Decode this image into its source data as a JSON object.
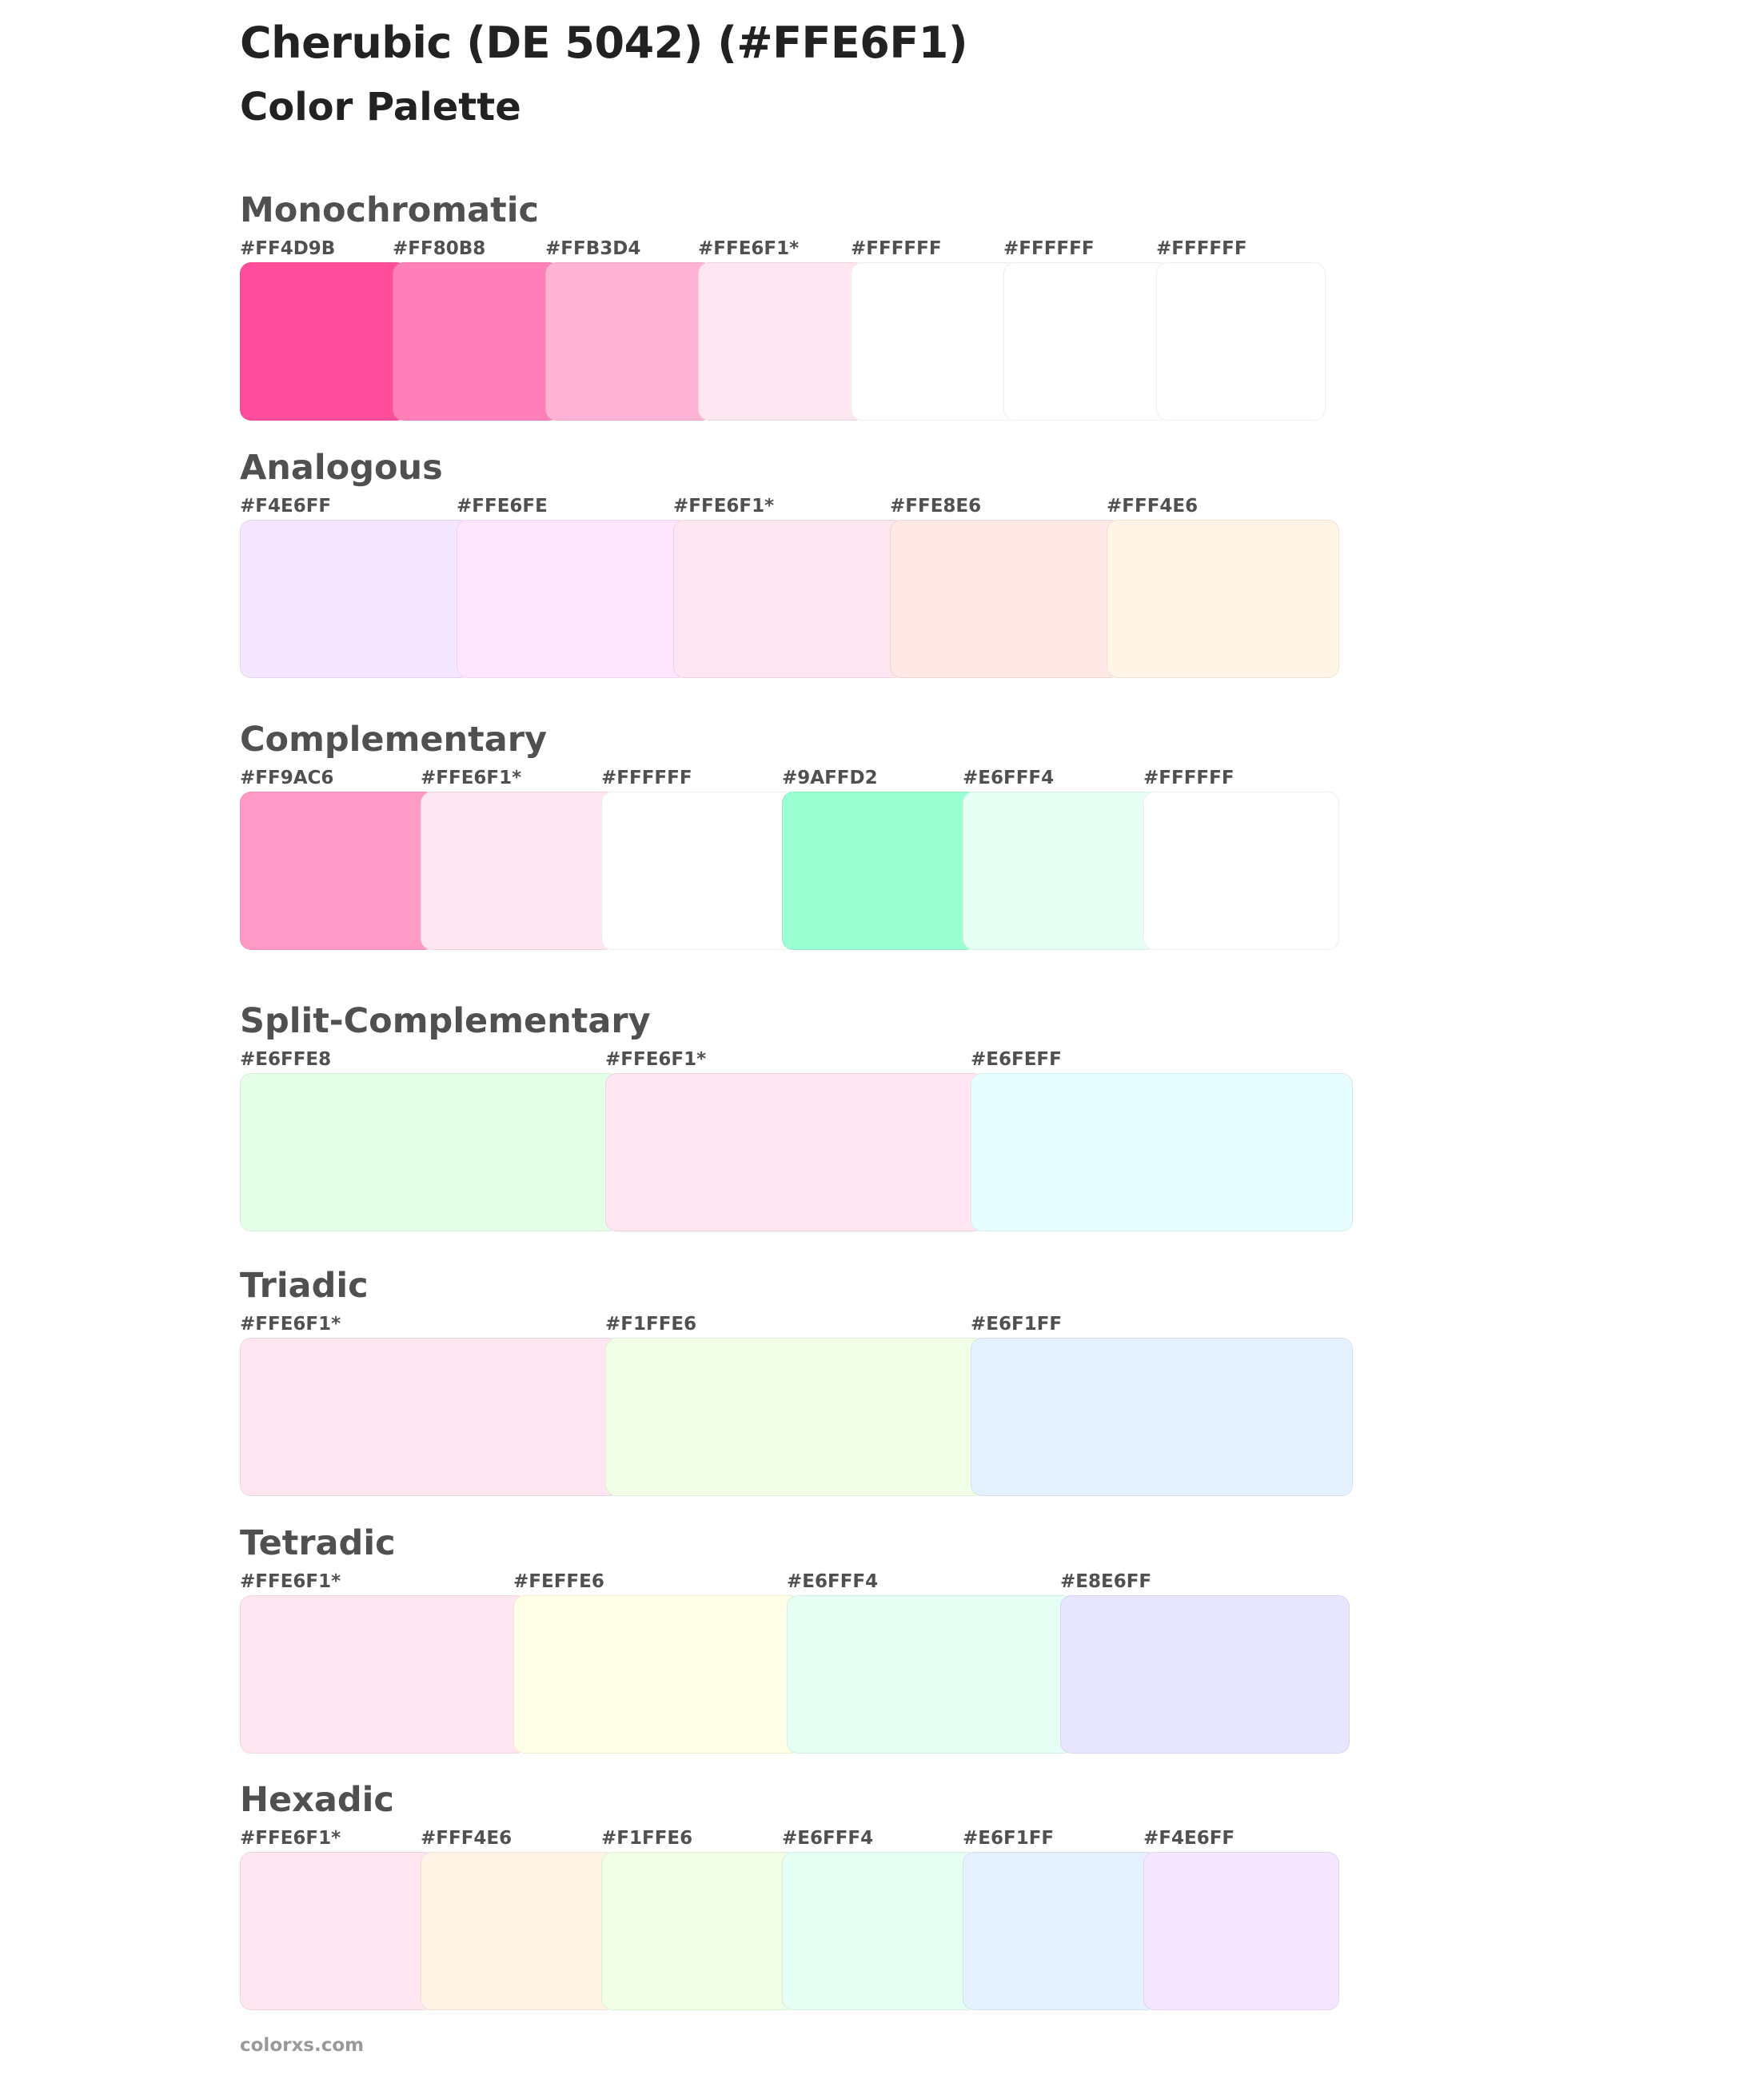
{
  "header": {
    "title": "Cherubic (DE 5042) (#FFE6F1)",
    "subtitle": "Color Palette"
  },
  "sections": [
    {
      "name": "Monochromatic",
      "swatches": [
        {
          "label": "#FF4D9B",
          "color": "#FF4D9B"
        },
        {
          "label": "#FF80B8",
          "color": "#FF80B8"
        },
        {
          "label": "#FFB3D4",
          "color": "#FFB3D4"
        },
        {
          "label": "#FFE6F1*",
          "color": "#FFE6F1"
        },
        {
          "label": "#FFFFFF",
          "color": "#FFFFFF"
        },
        {
          "label": "#FFFFFF",
          "color": "#FFFFFF"
        },
        {
          "label": "#FFFFFF",
          "color": "#FFFFFF"
        }
      ]
    },
    {
      "name": "Analogous",
      "swatches": [
        {
          "label": "#F4E6FF",
          "color": "#F4E6FF"
        },
        {
          "label": "#FFE6FE",
          "color": "#FFE6FE"
        },
        {
          "label": "#FFE6F1*",
          "color": "#FFE6F1"
        },
        {
          "label": "#FFE8E6",
          "color": "#FFE8E6"
        },
        {
          "label": "#FFF4E6",
          "color": "#FFF4E6"
        }
      ]
    },
    {
      "name": "Complementary",
      "swatches": [
        {
          "label": "#FF9AC6",
          "color": "#FF9AC6"
        },
        {
          "label": "#FFE6F1*",
          "color": "#FFE6F1"
        },
        {
          "label": "#FFFFFF",
          "color": "#FFFFFF"
        },
        {
          "label": "#9AFFD2",
          "color": "#9AFFD2"
        },
        {
          "label": "#E6FFF4",
          "color": "#E6FFF4"
        },
        {
          "label": "#FFFFFF",
          "color": "#FFFFFF"
        }
      ]
    },
    {
      "name": "Split-Complementary",
      "swatches": [
        {
          "label": "#E6FFE8",
          "color": "#E6FFE8"
        },
        {
          "label": "#FFE6F1*",
          "color": "#FFE6F1"
        },
        {
          "label": "#E6FEFF",
          "color": "#E6FEFF"
        }
      ]
    },
    {
      "name": "Triadic",
      "swatches": [
        {
          "label": "#FFE6F1*",
          "color": "#FFE6F1"
        },
        {
          "label": "#F1FFE6",
          "color": "#F1FFE6"
        },
        {
          "label": "#E6F1FF",
          "color": "#E6F1FF"
        }
      ]
    },
    {
      "name": "Tetradic",
      "swatches": [
        {
          "label": "#FFE6F1*",
          "color": "#FFE6F1"
        },
        {
          "label": "#FEFFE6",
          "color": "#FEFFE6"
        },
        {
          "label": "#E6FFF4",
          "color": "#E6FFF4"
        },
        {
          "label": "#E8E6FF",
          "color": "#E8E6FF"
        }
      ]
    },
    {
      "name": "Hexadic",
      "swatches": [
        {
          "label": "#FFE6F1*",
          "color": "#FFE6F1"
        },
        {
          "label": "#FFF4E6",
          "color": "#FFF4E6"
        },
        {
          "label": "#F1FFE6",
          "color": "#F1FFE6"
        },
        {
          "label": "#E6FFF4",
          "color": "#E6FFF4"
        },
        {
          "label": "#E6F1FF",
          "color": "#E6F1FF"
        },
        {
          "label": "#F4E6FF",
          "color": "#F4E6FF"
        }
      ]
    }
  ],
  "footer": {
    "site": "colorxs.com"
  }
}
